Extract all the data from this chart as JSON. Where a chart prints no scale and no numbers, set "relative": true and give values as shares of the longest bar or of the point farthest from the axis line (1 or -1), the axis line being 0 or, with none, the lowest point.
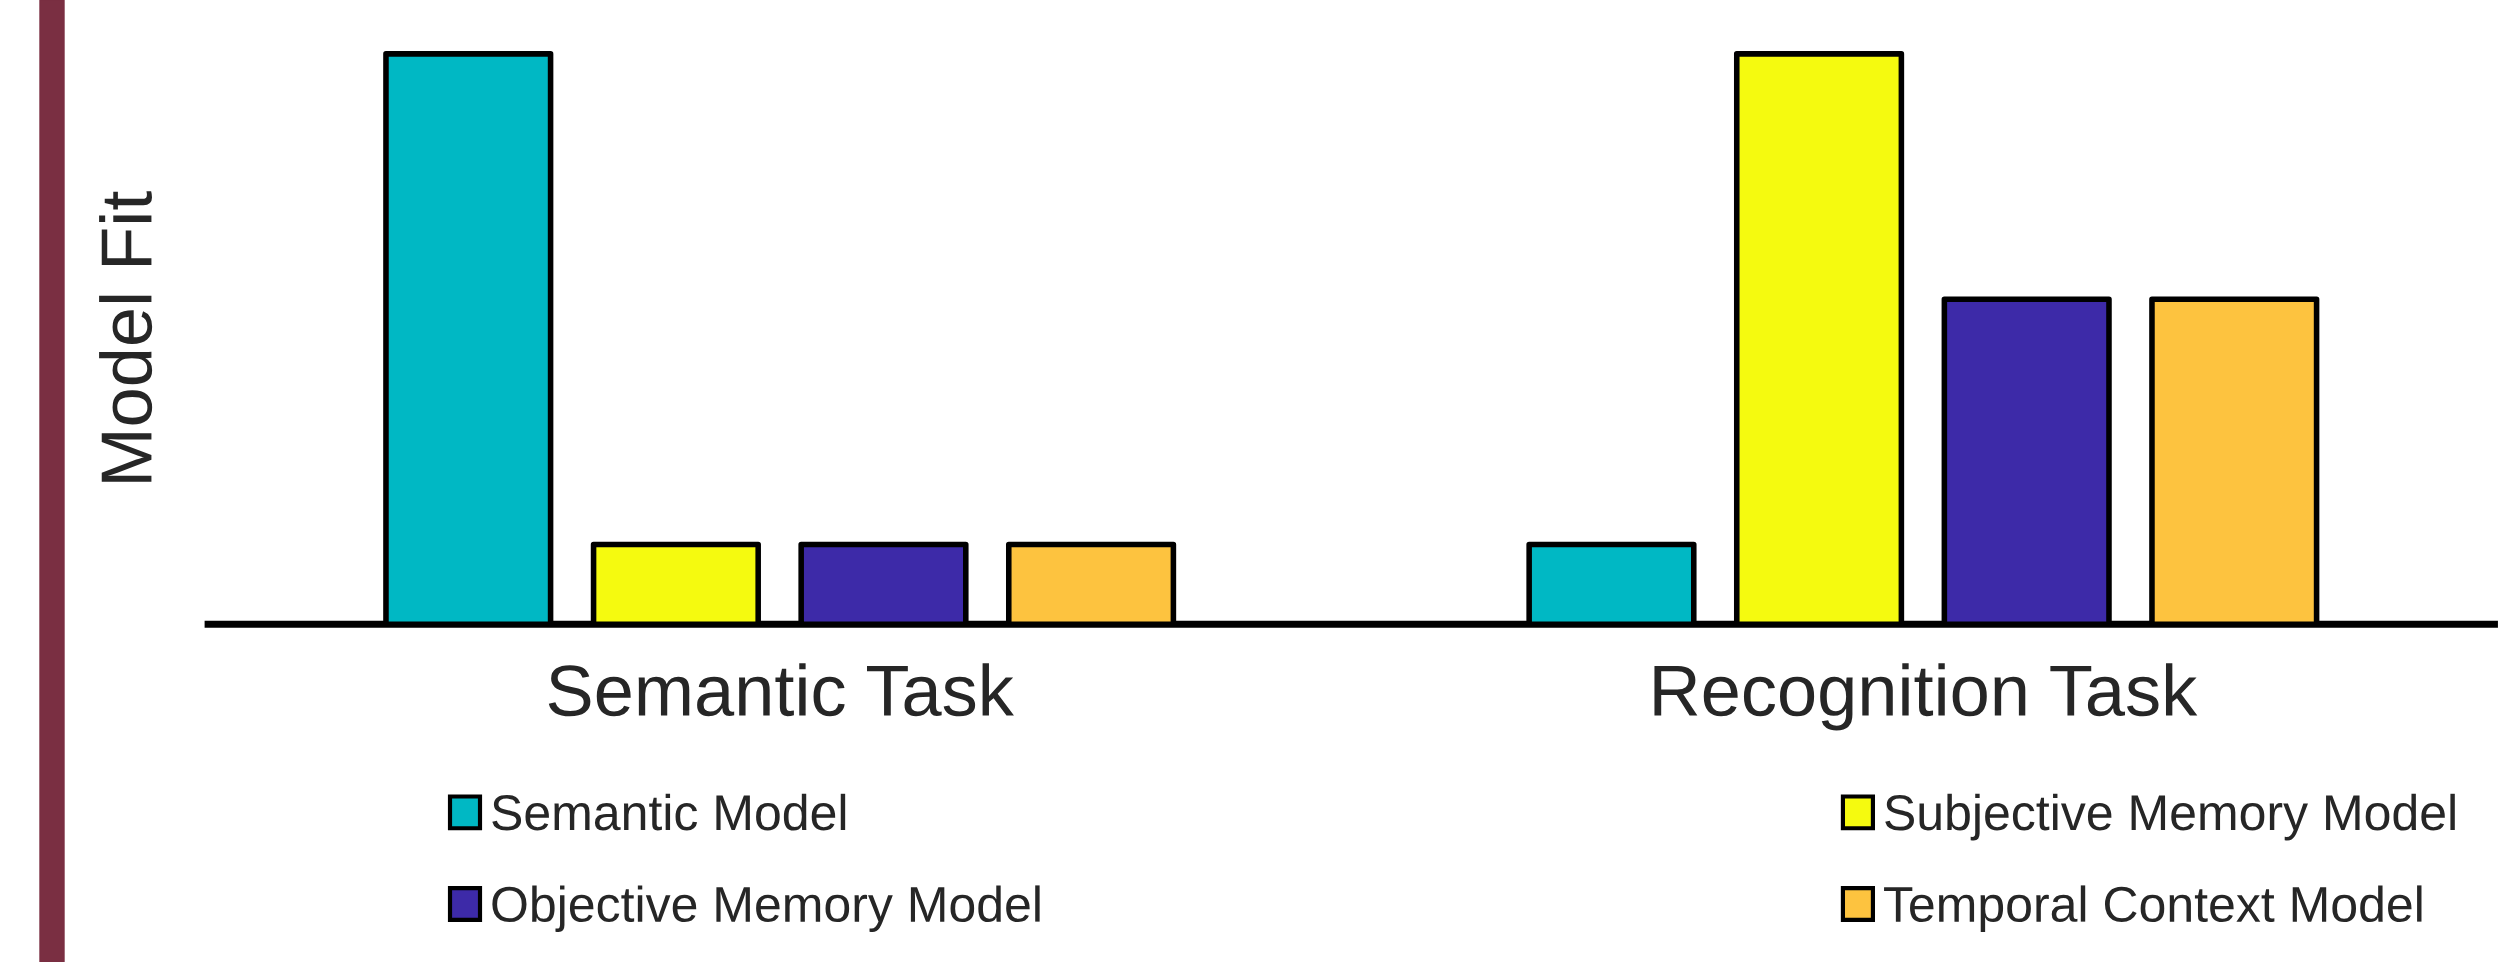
{
  "chart_data": {
    "type": "bar",
    "relative": true,
    "ylabel": "Model Fit",
    "categories": [
      "Semantic Task",
      "Recognition Task"
    ],
    "legend": "bottom",
    "grid": false,
    "series": [
      {
        "name": "Semantic Model",
        "color": "#00b8c4",
        "values": [
          1,
          0.14
        ]
      },
      {
        "name": "Subjective Memory Model",
        "color": "#f5fa0f",
        "values": [
          0.14,
          1
        ]
      },
      {
        "name": "Objective Memory Model",
        "color": "#3d2aa8",
        "values": [
          0.14,
          0.57
        ]
      },
      {
        "name": "Temporal Context Model",
        "color": "#fdc33f",
        "values": [
          0.14,
          0.57
        ]
      }
    ]
  }
}
